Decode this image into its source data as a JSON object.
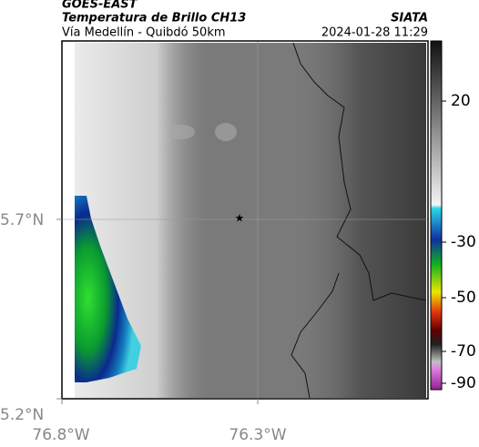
{
  "header": {
    "satellite": "GOES-EAST",
    "title": "Temperatura de Brillo CH13",
    "source": "SIATA",
    "subtitle": "Vía Medellín - Quibdó 50km",
    "datetime": "2024-01-28 11:29"
  },
  "map": {
    "lat_labels": [
      "5.7°N",
      "5.2°N"
    ],
    "lon_labels": [
      "76.8°W",
      "76.3°W"
    ]
  },
  "colorbar": {
    "ticks": [
      "20",
      "-30",
      "-50",
      "-70",
      "-90"
    ]
  }
}
